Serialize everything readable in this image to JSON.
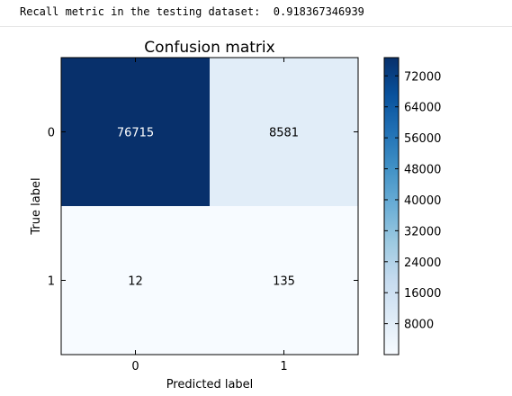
{
  "console": {
    "label": "Recall metric in the testing dataset:",
    "value": "0.918367346939"
  },
  "chart_data": {
    "type": "heatmap",
    "title": "Confusion matrix",
    "xlabel": "Predicted label",
    "ylabel": "True label",
    "x_categories": [
      "0",
      "1"
    ],
    "y_categories": [
      "0",
      "1"
    ],
    "values": [
      [
        76715,
        8581
      ],
      [
        12,
        135
      ]
    ],
    "colormap": "Blues",
    "color_range": [
      12,
      76715
    ],
    "colorbar_ticks": [
      8000,
      16000,
      24000,
      32000,
      40000,
      48000,
      56000,
      64000,
      72000
    ],
    "colorbar_labels": [
      "8000",
      "16000",
      "24000",
      "32000",
      "40000",
      "48000",
      "56000",
      "64000",
      "72000"
    ],
    "grid": false
  }
}
